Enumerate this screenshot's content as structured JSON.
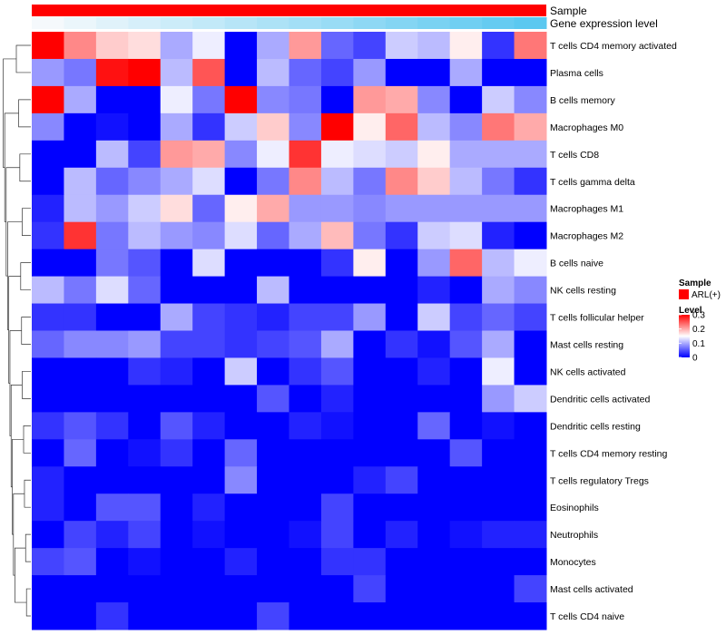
{
  "chart_data": {
    "type": "heatmap",
    "title": "",
    "annotation_tracks": [
      {
        "label": "Sample",
        "colors": [
          "#ff0000"
        ]
      },
      {
        "label": "Gene expression level",
        "gradient": [
          "#f5f9fc",
          "#5bc8f0"
        ]
      }
    ],
    "rows": [
      "T cells CD4 memory activated",
      "Plasma cells",
      "B cells memory",
      "Macrophages M0",
      "T cells CD8",
      "T cells gamma delta",
      "Macrophages M1",
      "Macrophages M2",
      "B cells naive",
      "NK cells resting",
      "T cells follicular helper",
      "Mast cells resting",
      "NK cells activated",
      "Dendritic cells activated",
      "Dendritic cells resting",
      "T cells CD4 memory resting",
      "T cells regulatory  Tregs",
      "Eosinophils",
      "Neutrophils",
      "Monocytes",
      "Mast cells activated",
      "T cells CD4 naive"
    ],
    "columns": 16,
    "values": [
      [
        0.3,
        0.22,
        0.18,
        0.17,
        0.1,
        0.14,
        0.0,
        0.1,
        0.21,
        0.06,
        0.04,
        0.12,
        0.11,
        0.16,
        0.03,
        0.23
      ],
      [
        0.09,
        0.07,
        0.29,
        0.3,
        0.11,
        0.25,
        0.0,
        0.11,
        0.06,
        0.04,
        0.09,
        0.0,
        0.0,
        0.1,
        0.0,
        0.0
      ],
      [
        0.3,
        0.1,
        0.0,
        0.0,
        0.14,
        0.07,
        0.3,
        0.08,
        0.07,
        0.0,
        0.21,
        0.2,
        0.08,
        0.0,
        0.12,
        0.08
      ],
      [
        0.08,
        0.0,
        0.01,
        0.0,
        0.1,
        0.03,
        0.12,
        0.18,
        0.08,
        0.3,
        0.16,
        0.24,
        0.11,
        0.08,
        0.23,
        0.2
      ],
      [
        0.0,
        0.0,
        0.11,
        0.04,
        0.21,
        0.2,
        0.08,
        0.14,
        0.27,
        0.14,
        0.13,
        0.12,
        0.16,
        0.1,
        0.1,
        0.1
      ],
      [
        0.0,
        0.11,
        0.06,
        0.08,
        0.1,
        0.13,
        0.0,
        0.07,
        0.22,
        0.11,
        0.07,
        0.22,
        0.18,
        0.11,
        0.07,
        0.03
      ],
      [
        0.02,
        0.11,
        0.09,
        0.12,
        0.17,
        0.06,
        0.16,
        0.2,
        0.09,
        0.09,
        0.08,
        0.09,
        0.09,
        0.09,
        0.09,
        0.09
      ],
      [
        0.03,
        0.27,
        0.07,
        0.11,
        0.09,
        0.08,
        0.13,
        0.06,
        0.1,
        0.19,
        0.07,
        0.03,
        0.12,
        0.13,
        0.02,
        0.0
      ],
      [
        0.0,
        0.0,
        0.07,
        0.05,
        0.0,
        0.13,
        0.0,
        0.0,
        0.0,
        0.03,
        0.16,
        0.0,
        0.09,
        0.24,
        0.11,
        0.14
      ],
      [
        0.11,
        0.07,
        0.13,
        0.06,
        0.0,
        0.0,
        0.0,
        0.11,
        0.0,
        0.0,
        0.0,
        0.0,
        0.02,
        0.0,
        0.1,
        0.08
      ],
      [
        0.03,
        0.03,
        0.0,
        0.0,
        0.1,
        0.04,
        0.03,
        0.02,
        0.04,
        0.04,
        0.09,
        0.0,
        0.12,
        0.04,
        0.06,
        0.04
      ],
      [
        0.06,
        0.08,
        0.08,
        0.09,
        0.04,
        0.04,
        0.03,
        0.04,
        0.05,
        0.1,
        0.0,
        0.03,
        0.01,
        0.05,
        0.1,
        0.0
      ],
      [
        0.0,
        0.0,
        0.0,
        0.03,
        0.02,
        0.0,
        0.12,
        0.0,
        0.03,
        0.05,
        0.0,
        0.0,
        0.02,
        0.0,
        0.14,
        0.0
      ],
      [
        0.0,
        0.0,
        0.0,
        0.0,
        0.0,
        0.0,
        0.0,
        0.05,
        0.0,
        0.02,
        0.0,
        0.0,
        0.0,
        0.0,
        0.09,
        0.12
      ],
      [
        0.03,
        0.05,
        0.03,
        0.0,
        0.05,
        0.02,
        0.0,
        0.0,
        0.02,
        0.01,
        0.0,
        0.0,
        0.06,
        0.0,
        0.01,
        0.0
      ],
      [
        0.0,
        0.06,
        0.0,
        0.01,
        0.03,
        0.0,
        0.06,
        0.0,
        0.0,
        0.0,
        0.0,
        0.0,
        0.0,
        0.05,
        0.0,
        0.0
      ],
      [
        0.02,
        0.0,
        0.0,
        0.0,
        0.0,
        0.0,
        0.08,
        0.0,
        0.0,
        0.0,
        0.02,
        0.04,
        0.0,
        0.0,
        0.0,
        0.0
      ],
      [
        0.02,
        0.0,
        0.05,
        0.05,
        0.0,
        0.02,
        0.0,
        0.0,
        0.0,
        0.04,
        0.0,
        0.0,
        0.0,
        0.0,
        0.0,
        0.0
      ],
      [
        0.0,
        0.04,
        0.02,
        0.04,
        0.0,
        0.01,
        0.0,
        0.0,
        0.01,
        0.04,
        0.0,
        0.02,
        0.0,
        0.01,
        0.02,
        0.02
      ],
      [
        0.04,
        0.05,
        0.0,
        0.01,
        0.0,
        0.0,
        0.02,
        0.0,
        0.0,
        0.03,
        0.03,
        0.0,
        0.0,
        0.0,
        0.0,
        0.0
      ],
      [
        0.0,
        0.0,
        0.0,
        0.0,
        0.0,
        0.0,
        0.0,
        0.0,
        0.0,
        0.0,
        0.04,
        0.0,
        0.0,
        0.0,
        0.0,
        0.04
      ],
      [
        0.0,
        0.0,
        0.03,
        0.0,
        0.0,
        0.0,
        0.0,
        0.04,
        0.0,
        0.0,
        0.0,
        0.0,
        0.0,
        0.0,
        0.0,
        0.0
      ]
    ],
    "colorscale": {
      "min": 0,
      "mid": 0.15,
      "max": 0.3,
      "low": "#0000ff",
      "mid_color": "#ffffff",
      "high": "#ff0000"
    },
    "legend": {
      "position": "right",
      "sample_title": "Sample",
      "sample_entry": "ARL(+)",
      "sample_color": "#ff0000",
      "level_title": "Level",
      "level_ticks": [
        "0.3",
        "0.2",
        "0.1",
        "0"
      ],
      "level_tick_values": [
        0.3,
        0.2,
        0.1,
        0
      ]
    },
    "dendrogram": "rows"
  }
}
